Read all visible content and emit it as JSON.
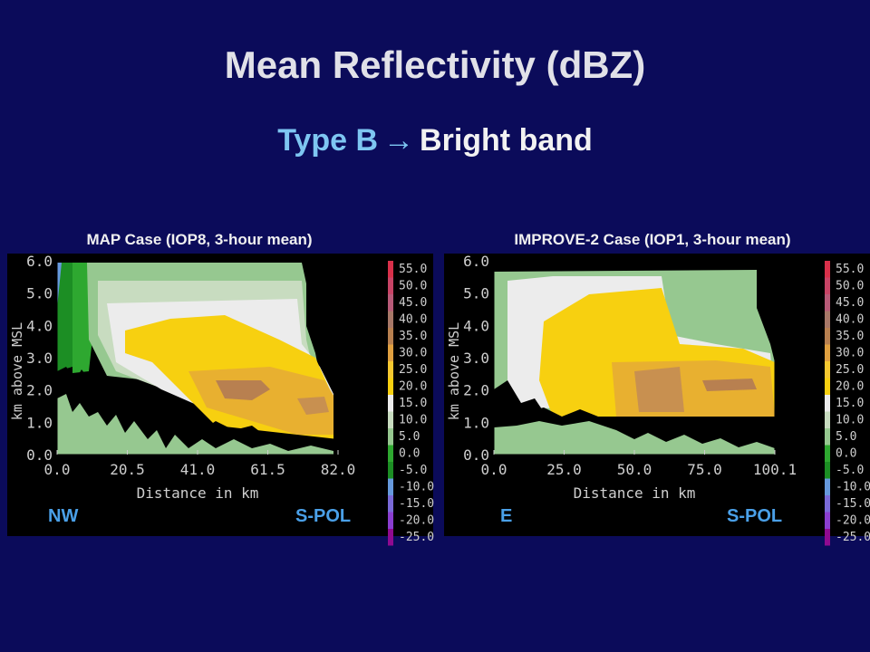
{
  "header": {
    "title": "Mean Reflectivity (dBZ)",
    "subtitle_type": "Type B",
    "subtitle_arrow": "→",
    "subtitle_band": "Bright band"
  },
  "colors": {
    "background": "#0b0b5a",
    "title": "#e1e1e8",
    "subtitle_accent": "#7ec6f2",
    "label_accent": "#4aa0e8"
  },
  "colorbar": {
    "labels": [
      "55.0",
      "50.0",
      "45.0",
      "40.0",
      "35.0",
      "30.0",
      "25.0",
      "20.0",
      "15.0",
      "10.0",
      "5.0",
      "0.0",
      "-5.0",
      "-10.0",
      "-15.0",
      "-20.0",
      "-25.0"
    ],
    "colors": [
      "#d9304a",
      "#c84466",
      "#b85a78",
      "#a87868",
      "#b88050",
      "#e0a040",
      "#f5c830",
      "#f7d010",
      "#ececec",
      "#c8dcc0",
      "#96c890",
      "#2ea830",
      "#1c8e24",
      "#6699dd",
      "#7a6ad8",
      "#8a3ed0",
      "#900a90"
    ]
  },
  "chart_data": [
    {
      "type": "heatmap",
      "title": "MAP Case (IOP8, 3-hour mean)",
      "xlabel": "Distance in km",
      "ylabel": "km above MSL",
      "x_ticks": [
        "0.0",
        "20.5",
        "41.0",
        "61.5",
        "82.0"
      ],
      "y_ticks": [
        "0.0",
        "1.0",
        "2.0",
        "3.0",
        "4.0",
        "5.0",
        "6.0"
      ],
      "xlim": [
        0,
        82
      ],
      "ylim": [
        0,
        6
      ],
      "left_label": "NW",
      "right_label": "S-POL",
      "bright_band_height_km": 1.8,
      "max_dbz": 30
    },
    {
      "type": "heatmap",
      "title": "IMPROVE-2 Case (IOP1, 3-hour mean)",
      "xlabel": "Distance in km",
      "ylabel": "km above MSL",
      "x_ticks": [
        "0.0",
        "25.0",
        "50.0",
        "75.0",
        "100.1"
      ],
      "y_ticks": [
        "0.0",
        "1.0",
        "2.0",
        "3.0",
        "4.0",
        "5.0",
        "6.0"
      ],
      "xlim": [
        0,
        100.1
      ],
      "ylim": [
        0,
        6
      ],
      "left_label": "E",
      "right_label": "S-POL",
      "bright_band_height_km": 1.8,
      "max_dbz": 30
    }
  ]
}
